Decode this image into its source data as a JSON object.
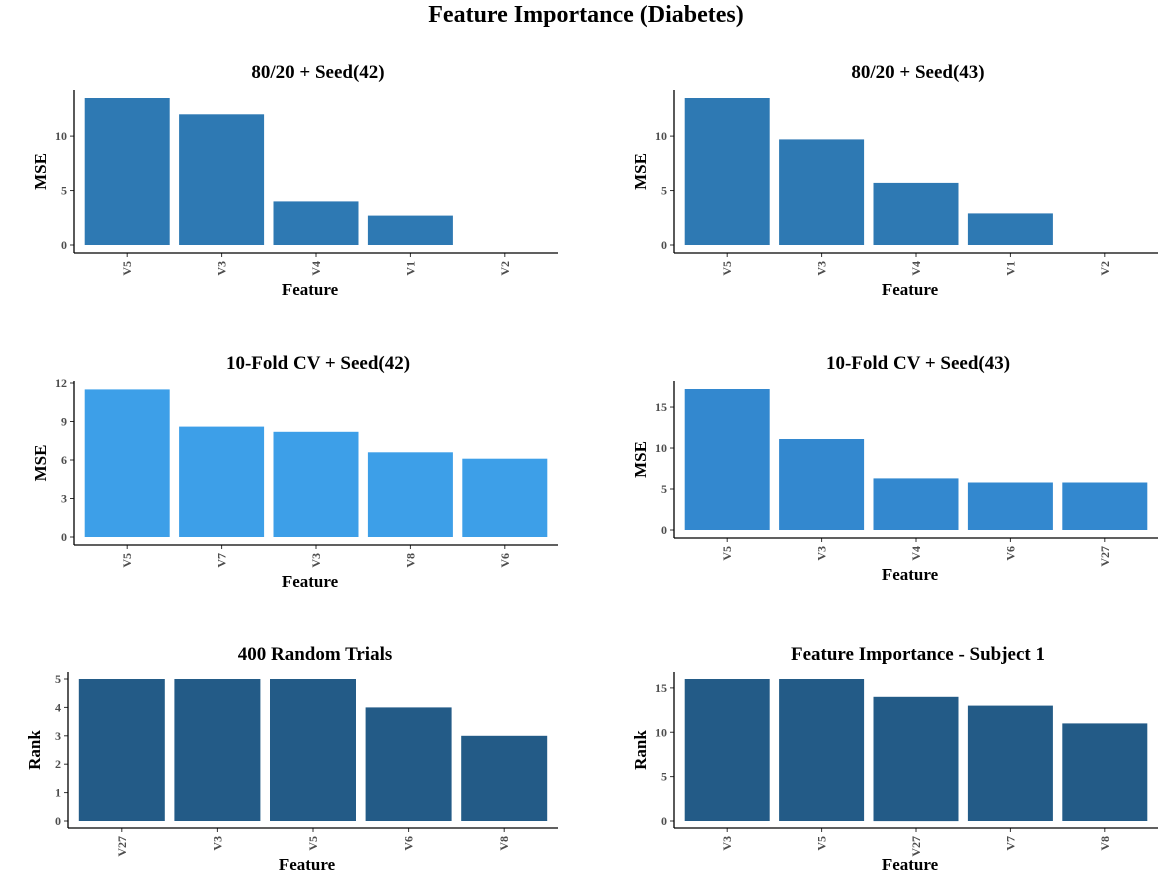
{
  "title": "Feature Importance (Diabetes)",
  "chart_data": [
    {
      "type": "bar",
      "title": "80/20 + Seed(42)",
      "xlabel": "Feature",
      "ylabel": "MSE",
      "categories": [
        "V5",
        "V3",
        "V4",
        "V1",
        "V2"
      ],
      "values": [
        13.5,
        12.0,
        4.0,
        2.7,
        0.0
      ],
      "ylim": [
        0,
        13.5
      ],
      "yticks": [
        0,
        5,
        10
      ],
      "color": "#2e79b3",
      "grid": false
    },
    {
      "type": "bar",
      "title": "80/20 + Seed(43)",
      "xlabel": "Feature",
      "ylabel": "MSE",
      "categories": [
        "V5",
        "V3",
        "V4",
        "V1",
        "V2"
      ],
      "values": [
        13.5,
        9.7,
        5.7,
        2.9,
        0.0
      ],
      "ylim": [
        0,
        13.5
      ],
      "yticks": [
        0,
        5,
        10
      ],
      "color": "#2e79b3",
      "grid": false
    },
    {
      "type": "bar",
      "title": "10-Fold CV + Seed(42)",
      "xlabel": "Feature",
      "ylabel": "MSE",
      "categories": [
        "V5",
        "V7",
        "V3",
        "V8",
        "V6"
      ],
      "values": [
        11.5,
        8.6,
        8.2,
        6.6,
        6.1
      ],
      "ylim": [
        0,
        12
      ],
      "yticks": [
        0,
        3,
        6,
        9,
        12
      ],
      "color": "#3d9fe8",
      "grid": false
    },
    {
      "type": "bar",
      "title": "10-Fold CV + Seed(43)",
      "xlabel": "Feature",
      "ylabel": "MSE",
      "categories": [
        "V5",
        "V3",
        "V4",
        "V6",
        "V27"
      ],
      "values": [
        17.2,
        11.1,
        6.3,
        5.8,
        5.8
      ],
      "ylim": [
        0,
        17.2
      ],
      "yticks": [
        0,
        5,
        10,
        15
      ],
      "color": "#3388cf",
      "grid": false
    },
    {
      "type": "bar",
      "title": "400 Random Trials",
      "xlabel": "Feature",
      "ylabel": "Rank",
      "categories": [
        "V27",
        "V3",
        "V5",
        "V6",
        "V8"
      ],
      "values": [
        5,
        5,
        5,
        4,
        3
      ],
      "ylim": [
        0,
        5
      ],
      "yticks": [
        0,
        1,
        2,
        3,
        4,
        5
      ],
      "color": "#235b87",
      "grid": false
    },
    {
      "type": "bar",
      "title": "Feature Importance - Subject 1",
      "xlabel": "Feature",
      "ylabel": "Rank",
      "categories": [
        "V3",
        "V5",
        "V27",
        "V7",
        "V8"
      ],
      "values": [
        16,
        16,
        14,
        13,
        11
      ],
      "ylim": [
        0,
        16
      ],
      "yticks": [
        0,
        5,
        10,
        15
      ],
      "color": "#235b87",
      "grid": false
    }
  ]
}
